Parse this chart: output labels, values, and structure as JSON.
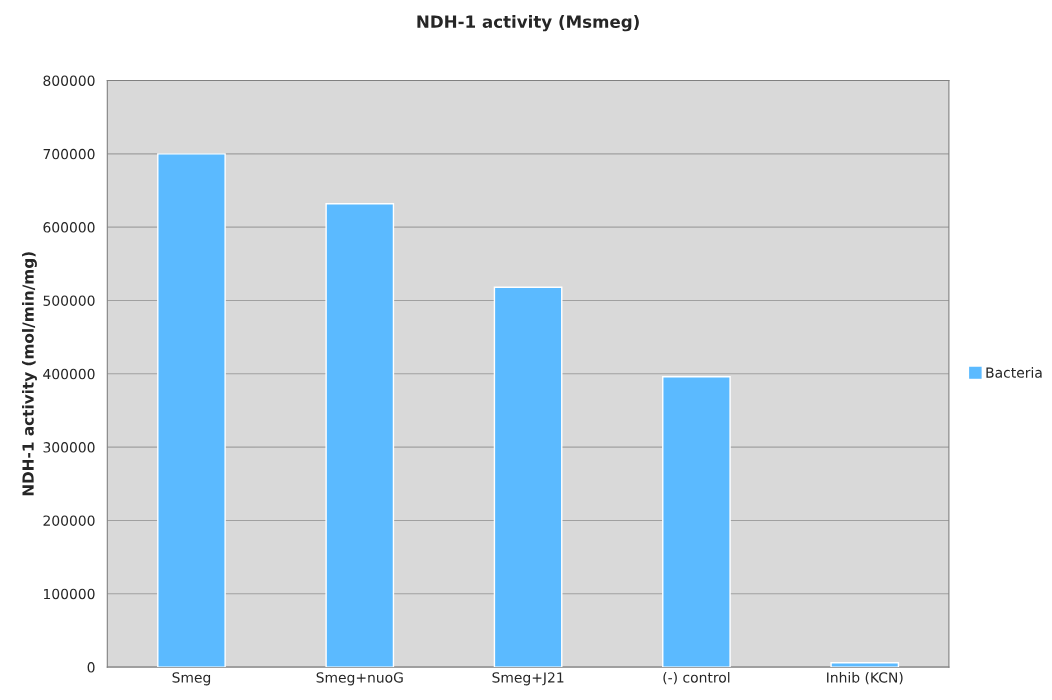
{
  "chart_data": {
    "type": "bar",
    "title": "NDH-1 activity (Msmeg)",
    "ylabel": "NDH-1 activity (mol/min/mg)",
    "categories": [
      "Smeg",
      "Smeg+nuoG",
      "Smeg+J21",
      "(-) control",
      "Inhib (KCN)"
    ],
    "series": [
      {
        "name": "Bacteria",
        "color": "#5bbaff",
        "values": [
          700000,
          632000,
          518000,
          396000,
          6000
        ]
      }
    ],
    "ylim": [
      0,
      800000
    ],
    "yticks": [
      0,
      100000,
      200000,
      300000,
      400000,
      500000,
      600000,
      700000,
      800000
    ],
    "grid": "y",
    "legend": "right"
  }
}
